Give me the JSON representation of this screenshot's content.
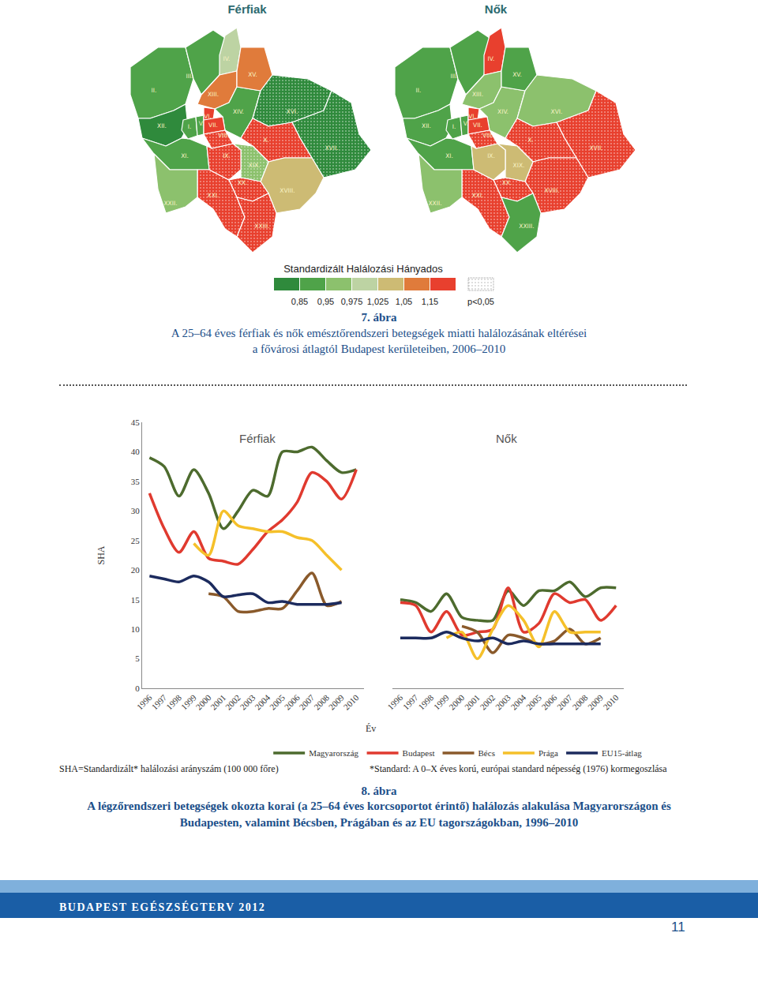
{
  "header": {
    "men": "Férfiak",
    "women": "Nők"
  },
  "map_legend": {
    "title": "Standardizált Halálozási Hányados",
    "colors": [
      "#2f8a3c",
      "#4fa349",
      "#8cc16d",
      "#bdd3a3",
      "#cdbb74",
      "#e07b3b",
      "#e8402e"
    ],
    "ticks": [
      {
        "value": 0.85,
        "label": "0,85"
      },
      {
        "value": 0.95,
        "label": "0,95"
      },
      {
        "value": 0.975,
        "label": "0,975"
      },
      {
        "value": 1.025,
        "label": "1,025"
      },
      {
        "value": 1.05,
        "label": "1,05"
      },
      {
        "value": 1.15,
        "label": "1,15"
      }
    ],
    "significance_label": "p<0,05"
  },
  "districts": {
    "men": [
      {
        "name": "I.",
        "level": 1,
        "significant": false
      },
      {
        "name": "II.",
        "level": 1,
        "significant": false
      },
      {
        "name": "III.",
        "level": 1,
        "significant": false
      },
      {
        "name": "IV.",
        "level": 3,
        "significant": false
      },
      {
        "name": "V.",
        "level": 1,
        "significant": false
      },
      {
        "name": "VI.",
        "level": 6,
        "significant": false
      },
      {
        "name": "VII.",
        "level": 6,
        "significant": false
      },
      {
        "name": "VIII.",
        "level": 6,
        "significant": true
      },
      {
        "name": "IX.",
        "level": 6,
        "significant": true
      },
      {
        "name": "X.",
        "level": 6,
        "significant": true
      },
      {
        "name": "XI.",
        "level": 1,
        "significant": false
      },
      {
        "name": "XII.",
        "level": 0,
        "significant": false
      },
      {
        "name": "XIII.",
        "level": 5,
        "significant": false
      },
      {
        "name": "XIV.",
        "level": 1,
        "significant": false
      },
      {
        "name": "XV.",
        "level": 5,
        "significant": false
      },
      {
        "name": "XVI.",
        "level": 0,
        "significant": true
      },
      {
        "name": "XVII.",
        "level": 0,
        "significant": true
      },
      {
        "name": "XVIII.",
        "level": 4,
        "significant": false
      },
      {
        "name": "XIX.",
        "level": 2,
        "significant": true
      },
      {
        "name": "XX.",
        "level": 6,
        "significant": true
      },
      {
        "name": "XXI.",
        "level": 6,
        "significant": true
      },
      {
        "name": "XXII.",
        "level": 2,
        "significant": false
      },
      {
        "name": "XXIII.",
        "level": 6,
        "significant": true
      }
    ],
    "women": [
      {
        "name": "I.",
        "level": 1,
        "significant": false
      },
      {
        "name": "II.",
        "level": 1,
        "significant": false
      },
      {
        "name": "III.",
        "level": 1,
        "significant": false
      },
      {
        "name": "IV.",
        "level": 6,
        "significant": false
      },
      {
        "name": "V.",
        "level": 1,
        "significant": false
      },
      {
        "name": "VI.",
        "level": 6,
        "significant": false
      },
      {
        "name": "VII.",
        "level": 6,
        "significant": false
      },
      {
        "name": "VIII.",
        "level": 6,
        "significant": true
      },
      {
        "name": "IX.",
        "level": 4,
        "significant": false
      },
      {
        "name": "X.",
        "level": 6,
        "significant": true
      },
      {
        "name": "XI.",
        "level": 1,
        "significant": false
      },
      {
        "name": "XII.",
        "level": 1,
        "significant": false
      },
      {
        "name": "XIII.",
        "level": 2,
        "significant": false
      },
      {
        "name": "XIV.",
        "level": 2,
        "significant": false
      },
      {
        "name": "XV.",
        "level": 1,
        "significant": false
      },
      {
        "name": "XVI.",
        "level": 2,
        "significant": false
      },
      {
        "name": "XVII.",
        "level": 6,
        "significant": true
      },
      {
        "name": "XVIII.",
        "level": 6,
        "significant": true
      },
      {
        "name": "XIX.",
        "level": 4,
        "significant": false
      },
      {
        "name": "XX.",
        "level": 6,
        "significant": true
      },
      {
        "name": "XXI.",
        "level": 6,
        "significant": true
      },
      {
        "name": "XXII.",
        "level": 2,
        "significant": false
      },
      {
        "name": "XXIII.",
        "level": 1,
        "significant": false
      }
    ]
  },
  "figure7": {
    "number": "7. ábra",
    "caption": [
      "A 25–64 éves férfiak és nők emésztőrendszeri betegségek miatti halálozásának eltérései",
      "a fővárosi átlagtól Budapest kerületeiben, 2006–2010"
    ]
  },
  "chart_data": [
    {
      "type": "line",
      "title": "Férfiak",
      "y_label": "SHA",
      "x": [
        1996,
        1997,
        1998,
        1999,
        2000,
        2001,
        2002,
        2003,
        2004,
        2005,
        2006,
        2007,
        2008,
        2009,
        2010
      ],
      "xlim": [
        1995.5,
        2010.5
      ],
      "xticks": [
        1996,
        1997,
        1998,
        1999,
        2000,
        2001,
        2002,
        2003,
        2004,
        2005,
        2006,
        2007,
        2008,
        2009,
        2010
      ],
      "ylim": [
        0,
        45
      ],
      "yticks": [
        0,
        5,
        10,
        15,
        20,
        25,
        30,
        35,
        40,
        45
      ],
      "grid": false,
      "legend": "bottom",
      "series": [
        {
          "name": "Magyarország",
          "color": "#4d6b2e",
          "values": [
            39,
            37.5,
            32.5,
            37,
            33,
            27,
            30,
            33.5,
            32.5,
            40,
            40,
            40.8,
            38.5,
            36.5,
            37
          ]
        },
        {
          "name": "Budapest",
          "color": "#e03a2f",
          "values": [
            33,
            27,
            23,
            26.5,
            22,
            21.5,
            21,
            23.5,
            26.5,
            28.5,
            31.5,
            36.5,
            35,
            32,
            37
          ]
        },
        {
          "name": "Bécs",
          "color": "#8a5a2b",
          "values": [
            null,
            null,
            null,
            null,
            16,
            15.5,
            13,
            13,
            13.5,
            13.5,
            16.5,
            19.5,
            14,
            14.7,
            null
          ]
        },
        {
          "name": "Prága",
          "color": "#f5c02a",
          "values": [
            null,
            null,
            null,
            24.5,
            22.5,
            30,
            27.5,
            27,
            26.5,
            26.5,
            25.5,
            25,
            22.5,
            20,
            null
          ]
        },
        {
          "name": "EU15-átlag",
          "color": "#1c2b5e",
          "values": [
            19,
            18.5,
            18,
            19,
            18,
            15.5,
            15.8,
            16,
            14.5,
            14.7,
            14.2,
            14.2,
            14.2,
            14.5,
            null
          ]
        }
      ]
    },
    {
      "type": "line",
      "title": "Nők",
      "x": [
        1996,
        1997,
        1998,
        1999,
        2000,
        2001,
        2002,
        2003,
        2004,
        2005,
        2006,
        2007,
        2008,
        2009,
        2010
      ],
      "xlim": [
        1995.5,
        2010.5
      ],
      "xticks": [
        1996,
        1997,
        1998,
        1999,
        2000,
        2001,
        2002,
        2003,
        2004,
        2005,
        2006,
        2007,
        2008,
        2009,
        2010
      ],
      "ylim": [
        0,
        45
      ],
      "yticks": [
        0,
        5,
        10,
        15,
        20,
        25,
        30,
        35,
        40,
        45
      ],
      "grid": false,
      "tick_labels": "x",
      "series": [
        {
          "name": "Magyarország",
          "color": "#4d6b2e",
          "values": [
            15,
            14.5,
            13,
            16,
            12,
            11.5,
            11.5,
            16.5,
            14,
            16.5,
            16.5,
            18,
            15.5,
            17,
            17
          ]
        },
        {
          "name": "Budapest",
          "color": "#e03a2f",
          "values": [
            14.5,
            14,
            9.5,
            13,
            9,
            9.5,
            10,
            17,
            9.5,
            11,
            16,
            14.5,
            15,
            11.5,
            14
          ]
        },
        {
          "name": "Bécs",
          "color": "#8a5a2b",
          "values": [
            null,
            null,
            null,
            null,
            10.5,
            9.5,
            6,
            9,
            8.5,
            7.5,
            8,
            10,
            7.5,
            8.5,
            null
          ]
        },
        {
          "name": "Prága",
          "color": "#f5c02a",
          "values": [
            null,
            null,
            null,
            8.5,
            9.5,
            5,
            10,
            14,
            11.5,
            7,
            13,
            9.5,
            9.5,
            9.5,
            null
          ]
        },
        {
          "name": "EU15-átlag",
          "color": "#1c2b5e",
          "values": [
            8.5,
            8.5,
            8.5,
            9.5,
            8.5,
            8,
            8.5,
            7.5,
            8,
            7.5,
            7.5,
            7.5,
            7.5,
            7.5,
            null
          ]
        }
      ]
    }
  ],
  "figure8": {
    "x_label": "Év",
    "notes": [
      "SHA=Standardizált* halálozási arányszám (100 000 főre)",
      "*Standard: A 0–X éves korú, európai standard népesség (1976) kormegoszlása"
    ],
    "number": "8. ábra",
    "caption": [
      "A légzőrendszeri betegségek okozta korai (a 25–64 éves korcsoportot érintő) halálozás alakulása Magyarországon és",
      "Budapesten, valamint Bécsben, Prágában és az EU tagországokban, 1996–2010"
    ]
  },
  "footer": {
    "title": "BUDAPEST EGÉSZSÉGTERV 2012",
    "page": "11"
  }
}
